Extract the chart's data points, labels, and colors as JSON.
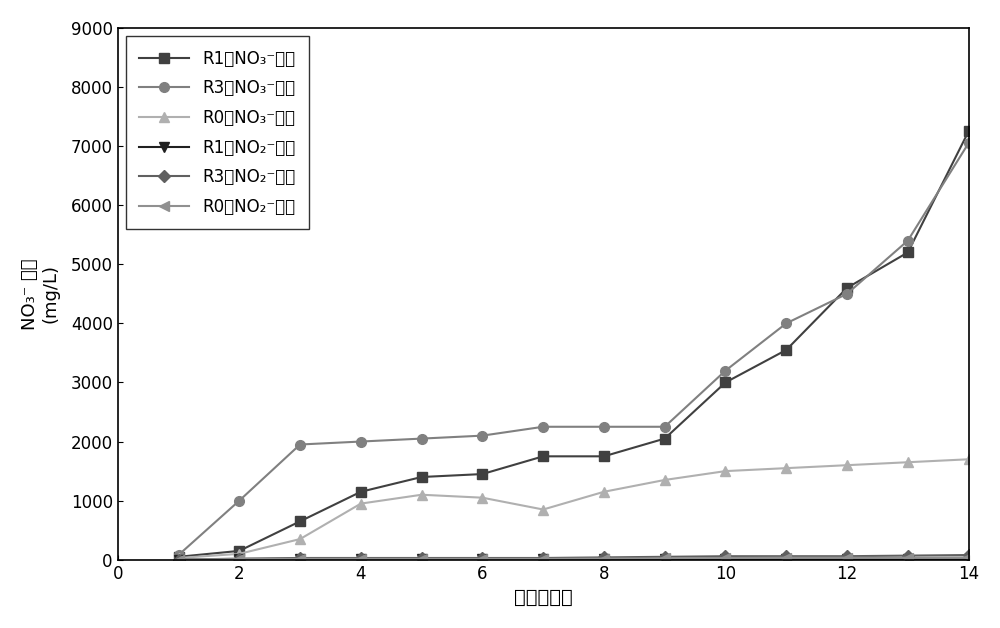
{
  "x": [
    1,
    2,
    3,
    4,
    5,
    6,
    7,
    8,
    9,
    10,
    11,
    12,
    13,
    14
  ],
  "R1_NO3": [
    50,
    150,
    650,
    1150,
    1400,
    1450,
    1750,
    1750,
    2050,
    3000,
    3550,
    4600,
    5200,
    7250
  ],
  "R3_NO3": [
    80,
    1000,
    1950,
    2000,
    2050,
    2100,
    2250,
    2250,
    2250,
    3200,
    4000,
    4500,
    5400,
    7050
  ],
  "R0_NO3": [
    30,
    100,
    350,
    950,
    1100,
    1050,
    850,
    1150,
    1350,
    1500,
    1550,
    1600,
    1650,
    1700
  ],
  "R1_NO2": [
    0,
    5,
    5,
    5,
    5,
    5,
    5,
    5,
    5,
    5,
    5,
    5,
    5,
    5
  ],
  "R3_NO2": [
    0,
    20,
    30,
    30,
    30,
    30,
    30,
    40,
    50,
    60,
    60,
    60,
    70,
    80
  ],
  "R0_NO2": [
    0,
    10,
    15,
    15,
    15,
    15,
    15,
    20,
    25,
    30,
    35,
    35,
    35,
    40
  ],
  "R1_NO3_color": "#404040",
  "R3_NO3_color": "#808080",
  "R0_NO3_color": "#b0b0b0",
  "R1_NO2_color": "#202020",
  "R3_NO2_color": "#606060",
  "R0_NO2_color": "#909090",
  "xlabel": "时间（天）",
  "ylabel_line1": "NO₃⁻ 浓度",
  "ylabel_line2": "(mg/L)",
  "ylim": [
    0,
    9000
  ],
  "xlim": [
    0,
    14
  ],
  "yticks": [
    0,
    1000,
    2000,
    3000,
    4000,
    5000,
    6000,
    7000,
    8000,
    9000
  ],
  "xticks": [
    0,
    2,
    4,
    6,
    8,
    10,
    12,
    14
  ],
  "legend_R1_NO3": "R1的NO₃⁻浓度",
  "legend_R3_NO3": "R3的NO₃⁻浓度",
  "legend_R0_NO3": "R0的NO₃⁻浓度",
  "legend_R1_NO2": "R1的NO₂⁻浓度",
  "legend_R3_NO2": "R3的NO₂⁻浓度",
  "legend_R0_NO2": "R0的NO₂⁻浓度",
  "bg_color": "#ffffff"
}
